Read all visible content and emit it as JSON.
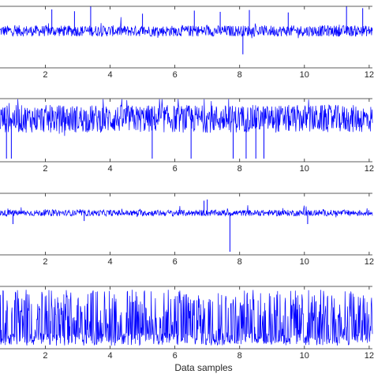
{
  "chart_data": [
    {
      "type": "line",
      "xlabel": "",
      "x_ticks": [
        2,
        4,
        6,
        8,
        10,
        12
      ],
      "xlim": [
        0.6,
        12.1
      ],
      "ylim": [
        0,
        1
      ],
      "grid": false,
      "line_color": "#0000ff",
      "series": [
        {
          "baseline": 0.6,
          "noise": 0.09,
          "spikes": [
            {
              "x": 2.2,
              "y": 0.95
            },
            {
              "x": 2.9,
              "y": 0.92
            },
            {
              "x": 3.4,
              "y": 1.0
            },
            {
              "x": 5.0,
              "y": 0.88
            },
            {
              "x": 6.6,
              "y": 0.93
            },
            {
              "x": 7.4,
              "y": 0.91
            },
            {
              "x": 8.3,
              "y": 0.94
            },
            {
              "x": 9.5,
              "y": 0.9
            },
            {
              "x": 11.3,
              "y": 1.0
            },
            {
              "x": 11.8,
              "y": 0.97
            },
            {
              "x": 8.1,
              "y": 0.22
            }
          ]
        }
      ]
    },
    {
      "type": "line",
      "xlabel": "",
      "x_ticks": [
        2,
        4,
        6,
        8,
        10,
        12
      ],
      "xlim": [
        0.6,
        12.1
      ],
      "ylim": [
        0,
        1
      ],
      "grid": false,
      "line_color": "#0000ff",
      "series": [
        {
          "baseline": 0.68,
          "noise": 0.22,
          "spikes": [
            {
              "x": 0.8,
              "y": 0.05
            },
            {
              "x": 0.95,
              "y": 0.05
            },
            {
              "x": 5.3,
              "y": 0.05
            },
            {
              "x": 6.5,
              "y": 0.05
            },
            {
              "x": 7.8,
              "y": 0.05
            },
            {
              "x": 8.2,
              "y": 0.05
            },
            {
              "x": 8.5,
              "y": 0.05
            },
            {
              "x": 8.75,
              "y": 0.05
            }
          ]
        }
      ]
    },
    {
      "type": "line",
      "xlabel": "",
      "x_ticks": [
        2,
        4,
        6,
        8,
        10,
        12
      ],
      "xlim": [
        0.6,
        12.1
      ],
      "ylim": [
        0,
        1
      ],
      "grid": false,
      "line_color": "#0000ff",
      "series": [
        {
          "baseline": 0.68,
          "noise": 0.05,
          "spikes": [
            {
              "x": 6.9,
              "y": 0.88
            },
            {
              "x": 7.0,
              "y": 0.9
            },
            {
              "x": 7.7,
              "y": 0.05
            },
            {
              "x": 1.0,
              "y": 0.5
            },
            {
              "x": 10.1,
              "y": 0.5
            },
            {
              "x": 3.2,
              "y": 0.55
            }
          ]
        }
      ]
    },
    {
      "type": "line",
      "xlabel": "Data samples",
      "x_ticks": [
        2,
        4,
        6,
        8,
        10,
        12
      ],
      "xlim": [
        0.6,
        12.1
      ],
      "ylim": [
        0,
        1
      ],
      "grid": false,
      "line_color": "#0000ff",
      "series": [
        {
          "baseline": 0.2,
          "noise": 0.85,
          "spikes": []
        }
      ]
    }
  ]
}
